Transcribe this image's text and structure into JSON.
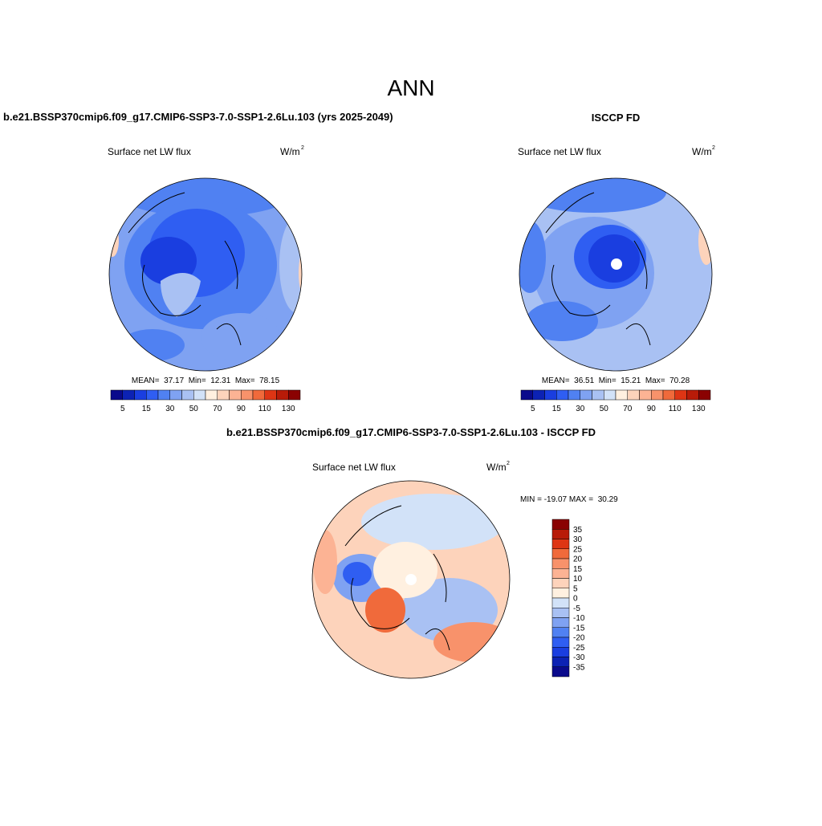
{
  "title": "ANN",
  "panels": [
    {
      "title": "b.e21.BSSP370cmip6.f09_g17.CMIP6-SSP3-7.0-SSP1-2.6Lu.103 (yrs 2025-2049)",
      "variable": "Surface net LW flux",
      "units": "W/m",
      "units_exponent": "2",
      "stats": "MEAN=  37.17  Min=  12.31  Max=  78.15"
    },
    {
      "title": "ISCCP FD",
      "variable": "Surface net LW flux",
      "units": "W/m",
      "units_exponent": "2",
      "stats": "MEAN=  36.51  Min=  15.21  Max=  70.28"
    }
  ],
  "colorbar": {
    "colors": [
      "#0a0a8c",
      "#0c22b4",
      "#1a3ee0",
      "#2f5ef2",
      "#5081f2",
      "#7fa2f2",
      "#a9c1f3",
      "#d2e2f8",
      "#fff0e0",
      "#fdd3bb",
      "#fcb394",
      "#f8926b",
      "#f06a3b",
      "#de3514",
      "#b81b08",
      "#8a0202"
    ],
    "labels": [
      "5",
      "15",
      "30",
      "50",
      "70",
      "90",
      "110",
      "130"
    ]
  },
  "difference": {
    "title": "b.e21.BSSP370cmip6.f09_g17.CMIP6-SSP3-7.0-SSP1-2.6Lu.103 - ISCCP FD",
    "variable": "Surface net LW flux",
    "units": "W/m",
    "units_exponent": "2",
    "stats": "MIN = -19.07 MAX =  30.29",
    "colorbar": {
      "colors": [
        "#8a0202",
        "#b81b08",
        "#de3514",
        "#f06a3b",
        "#f8926b",
        "#fcb394",
        "#fdd3bb",
        "#fff0e0",
        "#d2e2f8",
        "#a9c1f3",
        "#7fa2f2",
        "#5081f2",
        "#2f5ef2",
        "#1a3ee0",
        "#0c22b4",
        "#0a0a8c"
      ],
      "labels": [
        "35",
        "30",
        "25",
        "20",
        "15",
        "10",
        "5",
        "0",
        "-5",
        "-10",
        "-15",
        "-20",
        "-25",
        "-30",
        "-35"
      ]
    }
  }
}
